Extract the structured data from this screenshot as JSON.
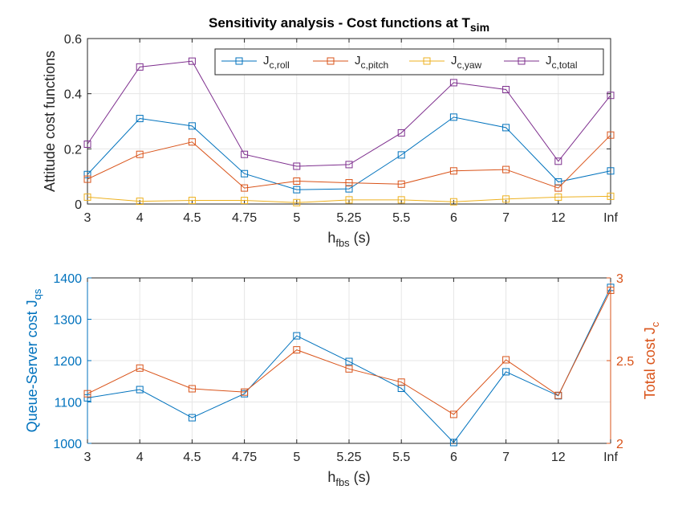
{
  "colors": {
    "roll": "#0072BD",
    "pitch": "#D95319",
    "yaw": "#EDB120",
    "total": "#7E2F8E",
    "grid": "#e6e6e6",
    "axis": "#262626"
  },
  "chart_data": [
    {
      "type": "line",
      "title": "Sensitivity analysis - Cost functions at T",
      "title_sub": "sim",
      "xlabel": "h",
      "xlabel_sub": "fbs",
      "xlabel_suffix": " (s)",
      "ylabel": "Attitude cost functions",
      "categories": [
        "3",
        "4",
        "4.5",
        "4.75",
        "5",
        "5.25",
        "5.5",
        "6",
        "7",
        "12",
        "Inf"
      ],
      "ylim": [
        0,
        0.6
      ],
      "yticks": [
        "0",
        "0.2",
        "0.4",
        "0.6"
      ],
      "ytick_values": [
        0,
        0.2,
        0.4,
        0.6
      ],
      "grid": true,
      "legend_position": "top-right",
      "marker": "square",
      "series": [
        {
          "name": "J",
          "name_sub": "c,roll",
          "color_key": "roll",
          "values": [
            0.107,
            0.31,
            0.283,
            0.11,
            0.052,
            0.055,
            0.178,
            0.315,
            0.277,
            0.08,
            0.12
          ]
        },
        {
          "name": "J",
          "name_sub": "c,pitch",
          "color_key": "pitch",
          "values": [
            0.09,
            0.18,
            0.225,
            0.058,
            0.083,
            0.077,
            0.072,
            0.12,
            0.125,
            0.058,
            0.25
          ]
        },
        {
          "name": "J",
          "name_sub": "c,yaw",
          "color_key": "yaw",
          "values": [
            0.025,
            0.01,
            0.013,
            0.013,
            0.005,
            0.015,
            0.015,
            0.008,
            0.018,
            0.025,
            0.028
          ]
        },
        {
          "name": "J",
          "name_sub": "c,total",
          "color_key": "total",
          "values": [
            0.217,
            0.497,
            0.518,
            0.18,
            0.137,
            0.143,
            0.258,
            0.44,
            0.415,
            0.155,
            0.394
          ]
        }
      ]
    },
    {
      "type": "line",
      "xlabel": "h",
      "xlabel_sub": "fbs",
      "xlabel_suffix": " (s)",
      "categories": [
        "3",
        "4",
        "4.5",
        "4.75",
        "5",
        "5.25",
        "5.5",
        "6",
        "7",
        "12",
        "Inf"
      ],
      "grid": true,
      "marker": "square",
      "y_left": {
        "label": "Queue-Server cost J",
        "label_sub": "qs",
        "lim": [
          1000,
          1400
        ],
        "ticks": [
          "1000",
          "1100",
          "1200",
          "1300",
          "1400"
        ],
        "tick_values": [
          1000,
          1100,
          1200,
          1300,
          1400
        ],
        "color_key": "roll",
        "values": [
          1110,
          1130,
          1062,
          1120,
          1260,
          1198,
          1133,
          1002,
          1173,
          1115,
          1377
        ]
      },
      "y_right": {
        "label": "Total cost J",
        "label_sub": "c",
        "lim": [
          2,
          3
        ],
        "ticks": [
          "2",
          "2.5",
          "3"
        ],
        "tick_values": [
          2,
          2.5,
          3
        ],
        "color_key": "pitch",
        "values": [
          2.3,
          2.455,
          2.33,
          2.31,
          2.565,
          2.45,
          2.37,
          2.175,
          2.505,
          2.29,
          2.925
        ]
      }
    }
  ]
}
